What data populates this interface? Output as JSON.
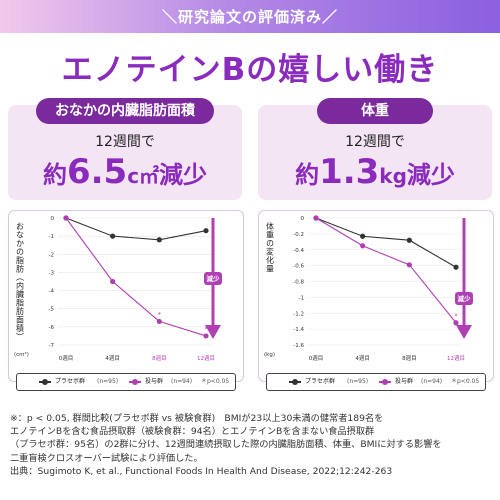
{
  "banner": "＼研究論文の評価済み／",
  "headline": "エノテインBの嬉しい働き",
  "panels": [
    {
      "label": "おなかの内臓脂肪面積",
      "period": "12週間で",
      "result_pre": "約",
      "result_value": "6.5",
      "result_unit": "c㎡",
      "result_post": "減少"
    },
    {
      "label": "体重",
      "period": "12週間で",
      "result_pre": "約",
      "result_value": "1.3",
      "result_unit": "kg",
      "result_post": "減少"
    }
  ],
  "legend": {
    "placebo": "プラセボ群",
    "placebo_n": "(n=95)",
    "treatment": "投与群",
    "treatment_n": "(n=94)",
    "sig": "＊p<0.05"
  },
  "colors": {
    "accent": "#8a2bbd",
    "placebo": "#333333",
    "treatment": "#b03fb3",
    "arrow": "#b03fb3"
  },
  "chart_data": [
    {
      "type": "line",
      "ylabel": "おなかの脂肪（内臓脂肪面積）",
      "yunit": "(cm²)",
      "arrow_label": "減少",
      "x": [
        "0週目",
        "4週目",
        "8週目",
        "12週目"
      ],
      "highlight_x": [
        "8週目",
        "12週目"
      ],
      "ylim": [
        -7,
        0.5
      ],
      "yticks": [
        0,
        -1,
        -2,
        -3,
        -4,
        -5,
        -6,
        -7
      ],
      "series": [
        {
          "name": "プラセボ群 (n=95)",
          "values": [
            0,
            -1.0,
            -1.2,
            -0.7
          ]
        },
        {
          "name": "投与群 (n=94)",
          "values": [
            0,
            -3.5,
            -5.7,
            -6.5
          ]
        }
      ],
      "significant": [
        "8週目",
        "12週目"
      ]
    },
    {
      "type": "line",
      "ylabel": "体重の変化量",
      "yunit": "(kg)",
      "arrow_label": "減少",
      "x": [
        "0週目",
        "4週目",
        "8週目",
        "12週目"
      ],
      "highlight_x": [
        "12週目"
      ],
      "ylim": [
        -1.6,
        0.0
      ],
      "yticks": [
        0,
        -0.2,
        -0.4,
        -0.6,
        -0.8,
        -1,
        -1.2,
        -1.4,
        -1.6
      ],
      "series": [
        {
          "name": "プラセボ群 (n=95)",
          "values": [
            0,
            -0.23,
            -0.28,
            -0.62
          ]
        },
        {
          "name": "投与群 (n=94)",
          "values": [
            0,
            -0.35,
            -0.59,
            -1.32
          ]
        }
      ],
      "significant": [
        "12週目"
      ]
    }
  ],
  "footnote": [
    "※：p < 0.05, 群間比較(プラセボ群 vs 被験食群)　BMIが23以上30未満の健常者189名を",
    "エノテインBを含む食品摂取群（被験食群：94名）とエノテインBを含まない食品摂取群",
    "（プラセボ群：95名）の2群に分け、12週間連続摂取した際の内臓脂肪面積、体重、BMIに対する影響を",
    "二重盲検クロスオーバー試験により評価した。",
    "出典：Sugimoto K, et al., Functional Foods In Health And Disease, 2022;12:242-263"
  ]
}
